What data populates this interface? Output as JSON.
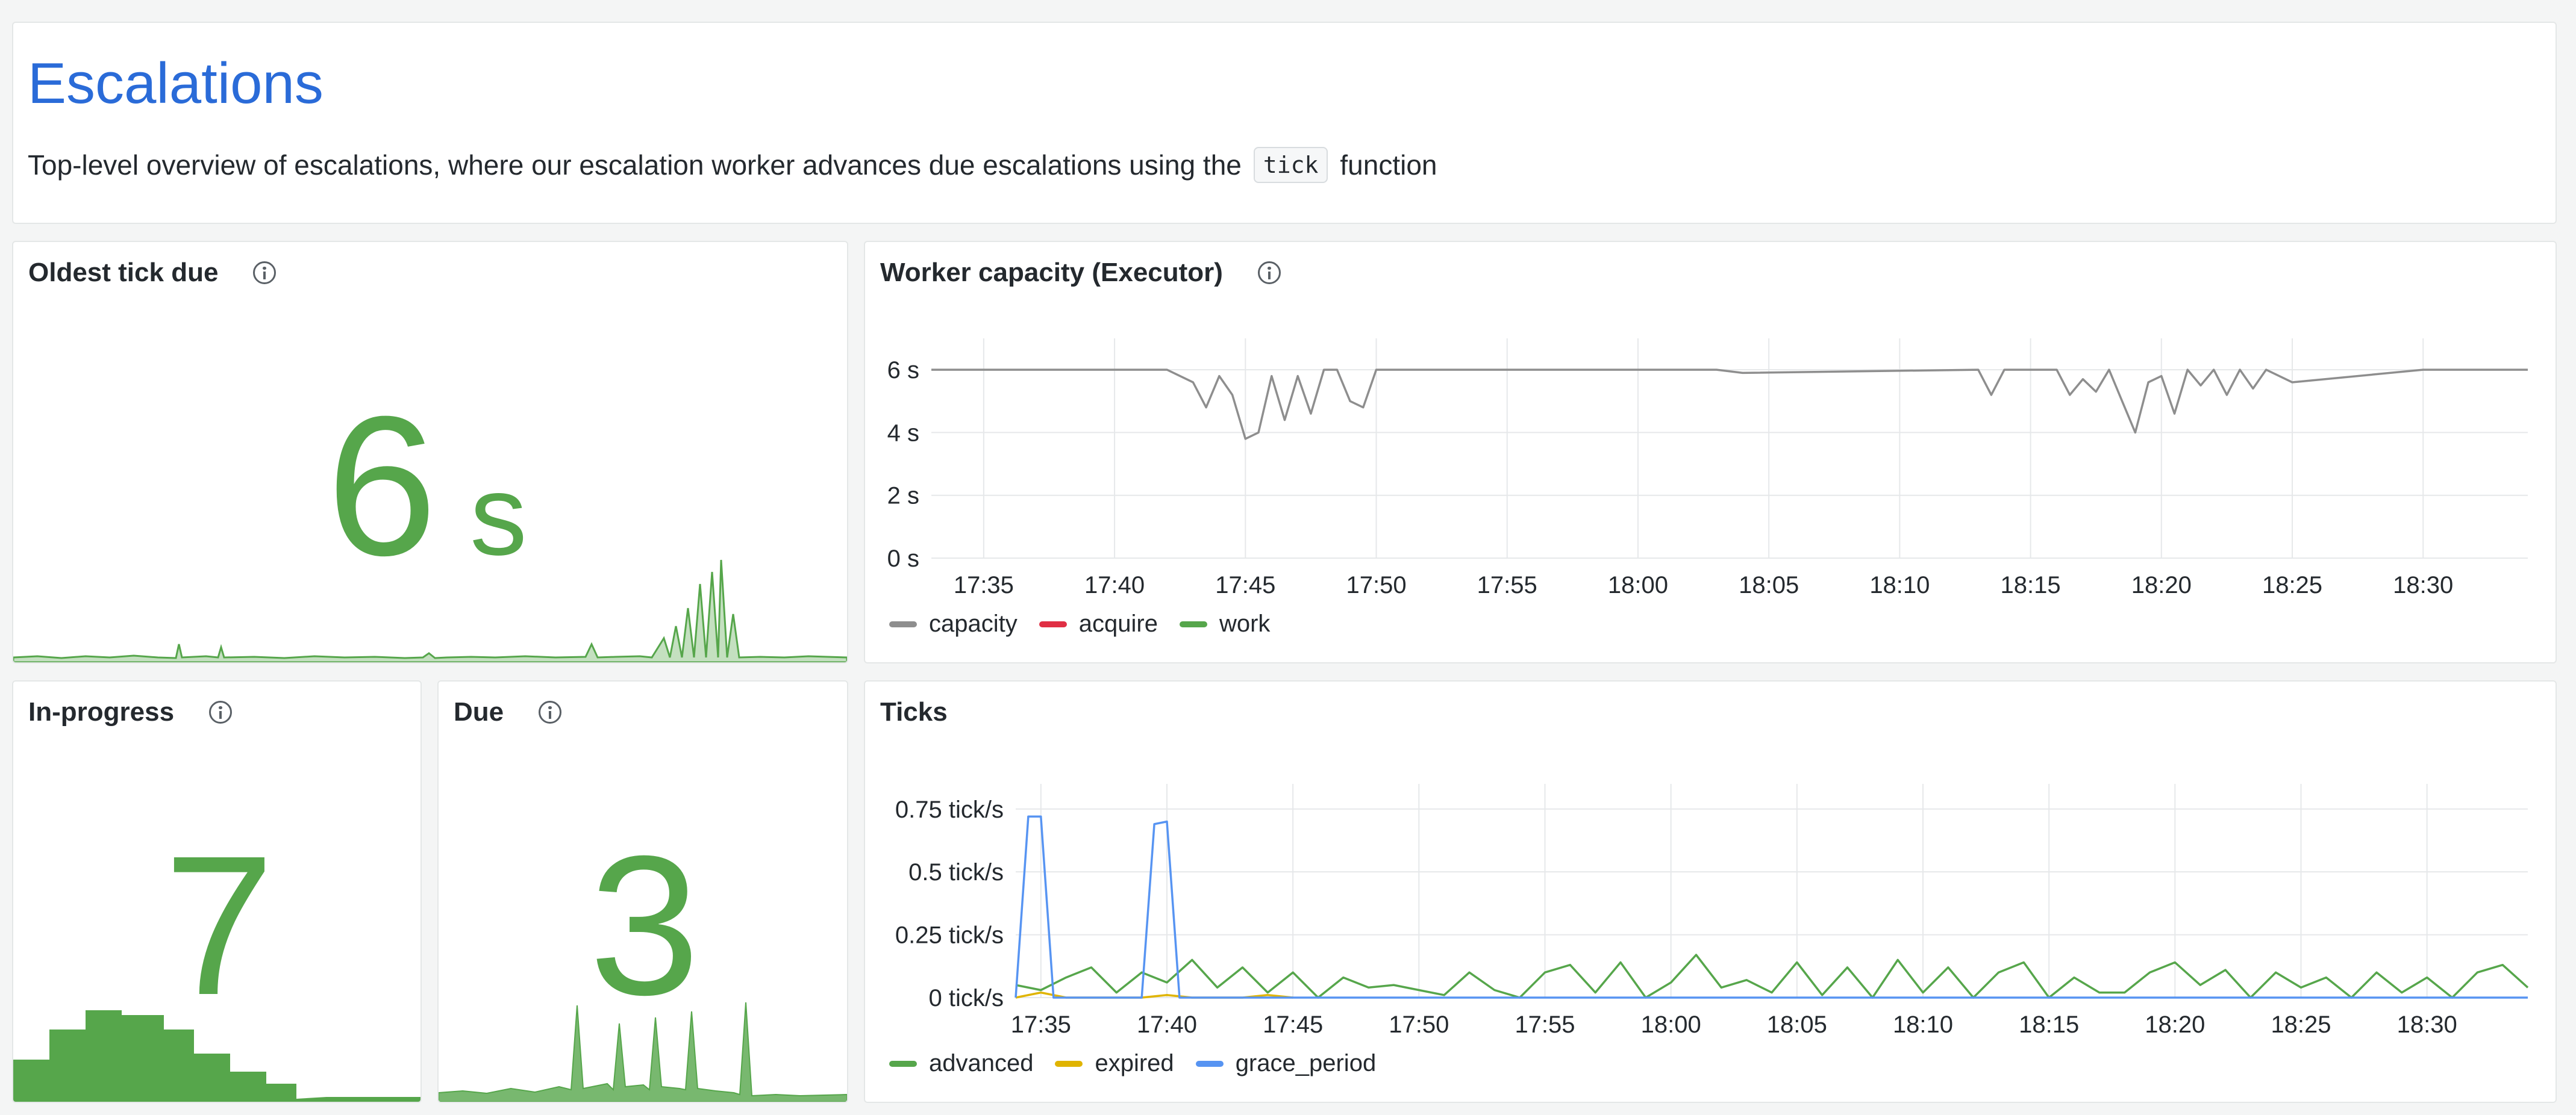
{
  "header": {
    "title": "Escalations",
    "desc_before": "Top-level overview of escalations, where our escalation worker advances due escalations using the",
    "code": "tick",
    "desc_after": "function"
  },
  "oldest_tick_due": {
    "title": "Oldest tick due",
    "value": "6",
    "unit": "s",
    "color": "#56a64b"
  },
  "in_progress": {
    "title": "In-progress",
    "value": "7",
    "color": "#56a64b"
  },
  "due": {
    "title": "Due",
    "value": "3",
    "color": "#56a64b"
  },
  "chart_data": [
    {
      "type": "line",
      "title": "Worker capacity (Executor)",
      "x_ticks": [
        "17:35",
        "17:40",
        "17:45",
        "17:50",
        "17:55",
        "18:00",
        "18:05",
        "18:10",
        "18:15",
        "18:20",
        "18:25",
        "18:30"
      ],
      "x_range": [
        "17:33",
        "18:34"
      ],
      "y_ticks": [
        "6 s",
        "4 s",
        "2 s",
        "0 s"
      ],
      "ylim": [
        0,
        7
      ],
      "grid": true,
      "legend_position": "bottom-left",
      "series": [
        {
          "name": "capacity",
          "color": "#8e8e8e",
          "x": [
            "17:33",
            "17:41",
            "17:42",
            "17:43",
            "17:43.5",
            "17:44",
            "17:44.5",
            "17:45",
            "17:45.5",
            "17:46",
            "17:46.5",
            "17:47",
            "17:47.5",
            "17:48",
            "17:48.5",
            "17:49",
            "17:49.5",
            "17:50",
            "18:03",
            "18:04",
            "18:13",
            "18:13.5",
            "18:14",
            "18:16",
            "18:16.5",
            "18:17",
            "18:17.5",
            "18:18",
            "18:18.5",
            "18:19",
            "18:19.5",
            "18:20",
            "18:20.5",
            "18:21",
            "18:21.5",
            "18:22",
            "18:22.5",
            "18:23",
            "18:23.5",
            "18:24",
            "18:25",
            "18:30",
            "18:34"
          ],
          "values": [
            6,
            6,
            6,
            5.6,
            4.8,
            5.8,
            5.2,
            3.8,
            4,
            5.8,
            4.4,
            5.8,
            4.6,
            6,
            6,
            5,
            4.8,
            6,
            6,
            5.9,
            6,
            5.2,
            6,
            6,
            5.2,
            5.7,
            5.3,
            6,
            5,
            4,
            5.6,
            5.8,
            4.6,
            6,
            5.5,
            6,
            5.2,
            6,
            5.4,
            6,
            5.6,
            6,
            6
          ]
        },
        {
          "name": "acquire",
          "color": "#e02f44",
          "x": [],
          "values": []
        },
        {
          "name": "work",
          "color": "#56a64b",
          "x": [],
          "values": []
        }
      ]
    },
    {
      "type": "line",
      "title": "Ticks",
      "x_ticks": [
        "17:35",
        "17:40",
        "17:45",
        "17:50",
        "17:55",
        "18:00",
        "18:05",
        "18:10",
        "18:15",
        "18:20",
        "18:25",
        "18:30"
      ],
      "x_range": [
        "17:34",
        "18:34"
      ],
      "y_ticks": [
        "0.75 tick/s",
        "0.5 tick/s",
        "0.25 tick/s",
        "0 tick/s"
      ],
      "ylim": [
        0,
        0.85
      ],
      "grid": true,
      "legend_position": "bottom-left",
      "series": [
        {
          "name": "advanced",
          "color": "#56a64b",
          "x": [
            "17:34",
            "17:35",
            "17:36",
            "17:37",
            "17:38",
            "17:39",
            "17:40",
            "17:41",
            "17:42",
            "17:43",
            "17:44",
            "17:45",
            "17:46",
            "17:47",
            "17:48",
            "17:49",
            "17:50",
            "17:51",
            "17:52",
            "17:53",
            "17:54",
            "17:55",
            "17:56",
            "17:57",
            "17:58",
            "17:59",
            "18:00",
            "18:01",
            "18:02",
            "18:03",
            "18:04",
            "18:05",
            "18:06",
            "18:07",
            "18:08",
            "18:09",
            "18:10",
            "18:11",
            "18:12",
            "18:13",
            "18:14",
            "18:15",
            "18:16",
            "18:17",
            "18:18",
            "18:19",
            "18:20",
            "18:21",
            "18:22",
            "18:23",
            "18:24",
            "18:25",
            "18:26",
            "18:27",
            "18:28",
            "18:29",
            "18:30",
            "18:31",
            "18:32",
            "18:33",
            "18:34"
          ],
          "values": [
            0.05,
            0.03,
            0.08,
            0.12,
            0.02,
            0.1,
            0.06,
            0.15,
            0.04,
            0.12,
            0.02,
            0.1,
            0,
            0.08,
            0.04,
            0.05,
            0.03,
            0.01,
            0.1,
            0.03,
            0,
            0.1,
            0.13,
            0.02,
            0.14,
            0,
            0.06,
            0.17,
            0.04,
            0.07,
            0.02,
            0.14,
            0.01,
            0.12,
            0,
            0.15,
            0.02,
            0.12,
            0,
            0.1,
            0.14,
            0,
            0.08,
            0.02,
            0.02,
            0.1,
            0.14,
            0.05,
            0.11,
            0,
            0.1,
            0.04,
            0.08,
            0,
            0.1,
            0.02,
            0.08,
            0,
            0.1,
            0.13,
            0.04
          ]
        },
        {
          "name": "expired",
          "color": "#e0b400",
          "x": [
            "17:34",
            "17:35",
            "17:36",
            "17:37",
            "17:38",
            "17:39",
            "17:40",
            "17:41",
            "17:42",
            "17:43",
            "17:44",
            "17:45"
          ],
          "values": [
            0,
            0.02,
            0,
            0,
            0,
            0,
            0.01,
            0,
            0,
            0,
            0.01,
            0
          ]
        },
        {
          "name": "grace_period",
          "color": "#5794f2",
          "x": [
            "17:34",
            "17:34.5",
            "17:35",
            "17:35.5",
            "17:36",
            "17:39",
            "17:39.5",
            "17:40",
            "17:40.5",
            "17:41",
            "18:34"
          ],
          "values": [
            0,
            0.72,
            0.72,
            0,
            0,
            0,
            0.69,
            0.7,
            0,
            0,
            0
          ]
        }
      ]
    }
  ]
}
